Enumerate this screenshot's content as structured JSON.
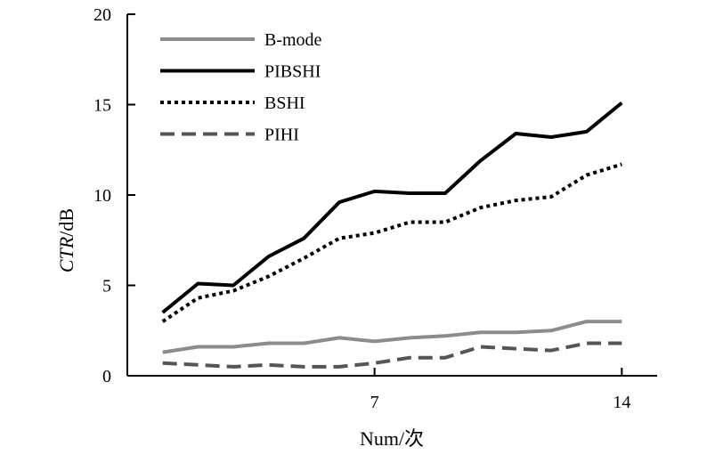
{
  "chart_data": {
    "type": "line",
    "xlabel": "Num/次",
    "ylabel_italic": "CTR",
    "ylabel_rest": "/dB",
    "ylim": [
      0,
      20
    ],
    "yticks": [
      0,
      5,
      10,
      15,
      20
    ],
    "xlim": [
      0,
      15
    ],
    "xticks": [
      7,
      14
    ],
    "x": [
      1,
      2,
      3,
      4,
      5,
      6,
      7,
      8,
      9,
      10,
      11,
      12,
      13,
      14
    ],
    "grid": false,
    "legend_position": "top-left",
    "series": [
      {
        "name": "B-mode",
        "color": "#8c8c8c",
        "dash": "solid",
        "values": [
          1.3,
          1.6,
          1.6,
          1.8,
          1.8,
          2.1,
          1.9,
          2.1,
          2.2,
          2.4,
          2.4,
          2.5,
          3.0,
          3.0
        ]
      },
      {
        "name": "PIBSHI",
        "color": "#000000",
        "dash": "solid",
        "values": [
          3.5,
          5.1,
          5.0,
          6.6,
          7.6,
          9.6,
          10.2,
          10.1,
          10.1,
          11.9,
          13.4,
          13.2,
          13.5,
          15.1
        ]
      },
      {
        "name": "BSHI",
        "color": "#000000",
        "dash": "dotted",
        "values": [
          3.0,
          4.3,
          4.7,
          5.5,
          6.5,
          7.6,
          7.9,
          8.5,
          8.5,
          9.3,
          9.7,
          9.9,
          11.1,
          11.7
        ]
      },
      {
        "name": "PIHI",
        "color": "#555555",
        "dash": "dashed",
        "values": [
          0.7,
          0.6,
          0.5,
          0.6,
          0.5,
          0.5,
          0.7,
          1.0,
          1.0,
          1.6,
          1.5,
          1.4,
          1.8,
          1.8
        ]
      }
    ]
  }
}
